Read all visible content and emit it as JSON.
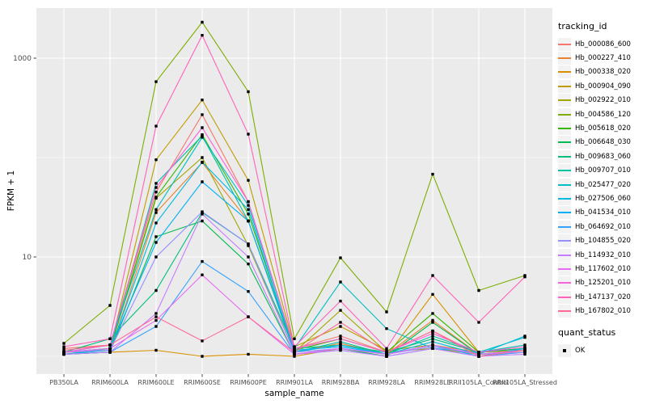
{
  "colors": {
    "panel_bg": "#EBEBEB",
    "grid": "#FFFFFF",
    "tick_text": "#4D4D4D",
    "point": "#000000"
  },
  "chart_data": {
    "type": "line",
    "title": "",
    "xlabel": "sample_name",
    "ylabel": "FPKM + 1",
    "y_scale": "log10",
    "ylim": [
      0.72,
      3200
    ],
    "y_ticks": [
      10,
      1000
    ],
    "y_minor_ticks": [
      1,
      100
    ],
    "grid": true,
    "legend_position": "right",
    "legend_title": "tracking_id",
    "point_shape": "small black square (quant_status OK)",
    "categories": [
      "PB350LA",
      "RRIM600LA",
      "RRIM600LE",
      "RRIM600SE",
      "RRIM600PE",
      "RRIM901LA",
      "RRIM928BA",
      "RRIM928LA",
      "RRIM928LE",
      "RRII105LA_Control",
      "RRII105LA_Stressed"
    ],
    "series": [
      {
        "name": "Hb_000086_600",
        "color": "#F8766D",
        "values": [
          1.2,
          1.3,
          45,
          270,
          36,
          1.2,
          1.6,
          1.1,
          1.8,
          1.05,
          1.15
        ]
      },
      {
        "name": "Hb_000227_410",
        "color": "#EA8331",
        "values": [
          1.05,
          1.1,
          28,
          89,
          23,
          1.1,
          1.35,
          1.05,
          2.3,
          1.05,
          1.1
        ]
      },
      {
        "name": "Hb_000338_020",
        "color": "#D89000",
        "values": [
          1.05,
          1.1,
          1.15,
          1.0,
          1.05,
          1.0,
          1.2,
          1.0,
          4.2,
          1.1,
          1.15
        ]
      },
      {
        "name": "Hb_000904_090",
        "color": "#C09B00",
        "values": [
          1.1,
          1.2,
          95,
          380,
          59,
          1.25,
          2.0,
          1.15,
          1.3,
          1.1,
          1.2
        ]
      },
      {
        "name": "Hb_002922_010",
        "color": "#A3A500",
        "values": [
          1.1,
          1.15,
          39,
          100,
          13,
          1.1,
          2.9,
          1.1,
          1.2,
          1.05,
          1.1
        ]
      },
      {
        "name": "Hb_004586_120",
        "color": "#7CAE00",
        "values": [
          1.35,
          3.25,
          580,
          2300,
          460,
          1.5,
          9.8,
          2.8,
          68,
          4.6,
          6.5
        ]
      },
      {
        "name": "Hb_005618_020",
        "color": "#39B600",
        "values": [
          1.1,
          1.2,
          40,
          170,
          27,
          1.15,
          1.5,
          1.1,
          2.7,
          1.1,
          1.2
        ]
      },
      {
        "name": "Hb_006648_030",
        "color": "#00BB4E",
        "values": [
          1.05,
          1.1,
          16,
          23,
          8.5,
          1.05,
          1.2,
          1.0,
          2.2,
          1.05,
          1.15
        ]
      },
      {
        "name": "Hb_009683_060",
        "color": "#00BF7D",
        "values": [
          1.1,
          1.5,
          4.6,
          28,
          13.5,
          1.2,
          1.3,
          1.1,
          1.5,
          1.1,
          1.2
        ]
      },
      {
        "name": "Hb_009707_010",
        "color": "#00C1A3",
        "values": [
          1.05,
          1.2,
          55,
          165,
          23,
          1.1,
          1.4,
          1.05,
          1.6,
          1.1,
          1.3
        ]
      },
      {
        "name": "Hb_025477_020",
        "color": "#00BFC4",
        "values": [
          1.1,
          1.3,
          30,
          160,
          33,
          1.2,
          5.6,
          1.9,
          1.2,
          1.1,
          1.55
        ]
      },
      {
        "name": "Hb_027506_060",
        "color": "#00BAE0",
        "values": [
          1.05,
          1.15,
          22,
          90,
          30,
          1.1,
          1.3,
          1.05,
          1.4,
          1.05,
          1.6
        ]
      },
      {
        "name": "Hb_041534_010",
        "color": "#00B0F6",
        "values": [
          1.1,
          1.2,
          14,
          57,
          23,
          1.15,
          1.25,
          1.05,
          1.3,
          1.0,
          1.2
        ]
      },
      {
        "name": "Hb_064692_010",
        "color": "#35A2FF",
        "values": [
          1.05,
          1.1,
          2.0,
          9.0,
          4.5,
          1.05,
          1.15,
          1.0,
          1.2,
          1.0,
          1.1
        ]
      },
      {
        "name": "Hb_104855_020",
        "color": "#9590FF",
        "values": [
          1.1,
          1.15,
          10,
          28.5,
          13.5,
          1.1,
          1.2,
          1.05,
          1.25,
          1.05,
          1.1
        ]
      },
      {
        "name": "Hb_114932_010",
        "color": "#C77CFF",
        "values": [
          1.05,
          1.1,
          2.7,
          27,
          10,
          1.05,
          1.15,
          1.0,
          1.2,
          1.0,
          1.05
        ]
      },
      {
        "name": "Hb_117602_010",
        "color": "#E76BF3",
        "values": [
          1.1,
          1.2,
          2.3,
          6.6,
          2.5,
          1.05,
          1.2,
          1.05,
          1.3,
          1.05,
          1.15
        ]
      },
      {
        "name": "Hb_125201_010",
        "color": "#FA62DB",
        "values": [
          1.1,
          1.3,
          50,
          200,
          36,
          1.2,
          1.5,
          1.1,
          1.7,
          1.1,
          1.25
        ]
      },
      {
        "name": "Hb_147137_020",
        "color": "#FF62BC",
        "values": [
          1.25,
          1.5,
          207,
          1700,
          172,
          1.25,
          3.6,
          1.2,
          6.5,
          2.2,
          6.3
        ]
      },
      {
        "name": "Hb_167802_010",
        "color": "#FF6A98",
        "values": [
          1.15,
          1.3,
          2.5,
          1.43,
          2.5,
          1.1,
          2.2,
          1.1,
          1.8,
          1.0,
          1.15
        ]
      }
    ],
    "quant_status": {
      "title": "quant_status",
      "items": [
        {
          "label": "OK"
        }
      ]
    }
  }
}
